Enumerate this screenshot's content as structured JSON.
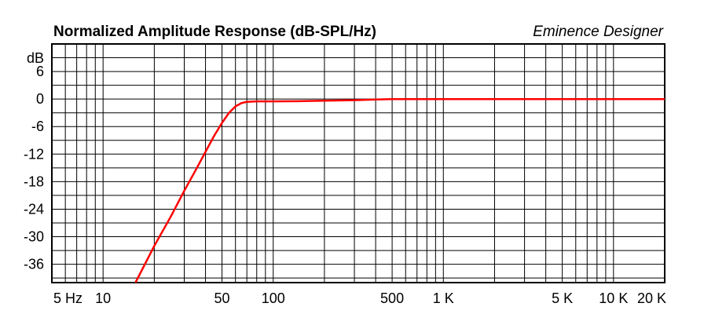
{
  "chart_data": {
    "type": "line",
    "title": "Normalized Amplitude Response (dB-SPL/Hz)",
    "brand": "Eminence Designer",
    "ylabel": "dB",
    "xscale": "log",
    "xlim": [
      5,
      20000
    ],
    "ylim": [
      -40,
      12
    ],
    "grid": true,
    "y_ticks": [
      6,
      0,
      -6,
      -12,
      -18,
      -24,
      -30,
      -36
    ],
    "y_tick_labels": [
      "6",
      "0",
      "-6",
      "-12",
      "-18",
      "-24",
      "-30",
      "-36"
    ],
    "x_ticks": [
      5,
      10,
      50,
      100,
      500,
      1000,
      5000,
      10000,
      20000
    ],
    "x_tick_labels": [
      "5 Hz",
      "10",
      "50",
      "100",
      "500",
      "1 K",
      "5 K",
      "10 K",
      "20 K"
    ],
    "series": [
      {
        "color": "#ff0000",
        "x": [
          15.5,
          20,
          25,
          30,
          35,
          40,
          45,
          50,
          55,
          60,
          65,
          70,
          80,
          100,
          150,
          200,
          300,
          400,
          500,
          1000,
          5000,
          20000
        ],
        "y": [
          -40,
          -32,
          -25.6,
          -20,
          -15.5,
          -11.5,
          -8,
          -5.2,
          -3,
          -1.6,
          -0.9,
          -0.6,
          -0.5,
          -0.5,
          -0.45,
          -0.35,
          -0.25,
          -0.1,
          0,
          0,
          0,
          0
        ]
      }
    ]
  }
}
